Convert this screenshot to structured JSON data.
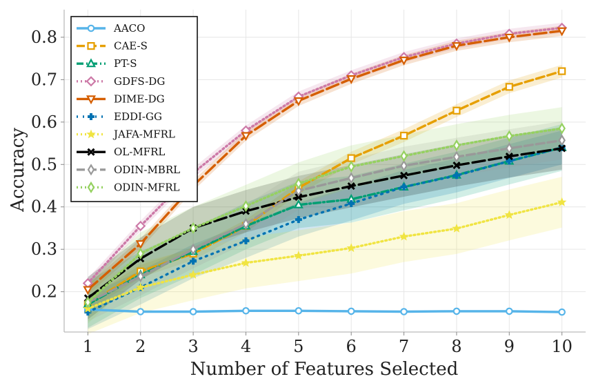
{
  "chart_data": {
    "type": "line",
    "title": "",
    "xlabel": "Number of Features Selected",
    "ylabel": "Accuracy",
    "x": [
      1,
      2,
      3,
      4,
      5,
      6,
      7,
      8,
      9,
      10
    ],
    "xlim": [
      0.55,
      10.45
    ],
    "ylim": [
      0.105,
      0.865
    ],
    "xticks": [
      "1",
      "2",
      "3",
      "4",
      "5",
      "6",
      "7",
      "8",
      "9",
      "10"
    ],
    "yticks": [
      0.2,
      0.3,
      0.4,
      0.5,
      0.6,
      0.7,
      0.8
    ],
    "ytick_labels": [
      "0.2",
      "0.3",
      "0.4",
      "0.5",
      "0.6",
      "0.7",
      "0.8"
    ],
    "grid": true,
    "legend_position": "top-left",
    "series": [
      {
        "name": "AACO",
        "color": "#56B4E9",
        "dash": "solid",
        "marker": "circle",
        "values": [
          0.158,
          0.153,
          0.153,
          0.155,
          0.155,
          0.154,
          0.153,
          0.154,
          0.154,
          0.152
        ],
        "band": 0.003
      },
      {
        "name": "CAE-S",
        "color": "#E69F00",
        "dash": "dashed",
        "marker": "square",
        "values": [
          0.17,
          0.248,
          0.29,
          0.355,
          0.445,
          0.515,
          0.568,
          0.627,
          0.683,
          0.72
        ],
        "band": 0.015
      },
      {
        "name": "PT-S",
        "color": "#009E73",
        "dash": "dashdot",
        "marker": "triangle-up",
        "values": [
          0.17,
          0.24,
          0.295,
          0.355,
          0.405,
          0.418,
          0.447,
          0.475,
          0.508,
          0.54
        ],
        "band": 0.055
      },
      {
        "name": "GDFS-DG",
        "color": "#CC79A7",
        "dash": "dotted",
        "marker": "diamond",
        "values": [
          0.22,
          0.355,
          0.48,
          0.58,
          0.66,
          0.71,
          0.753,
          0.785,
          0.808,
          0.822
        ],
        "band": 0.012
      },
      {
        "name": "DIME-DG",
        "color": "#D55E00",
        "dash": "longdash",
        "marker": "triangle-down",
        "values": [
          0.205,
          0.313,
          0.45,
          0.568,
          0.65,
          0.702,
          0.746,
          0.78,
          0.8,
          0.815
        ],
        "band": 0.012
      },
      {
        "name": "EDDI-GG",
        "color": "#0072B2",
        "dash": "densedot",
        "marker": "plus",
        "values": [
          0.152,
          0.21,
          0.272,
          0.32,
          0.37,
          0.408,
          0.447,
          0.474,
          0.508,
          0.54
        ],
        "band": 0.04
      },
      {
        "name": "JAFA-MFRL",
        "color": "#F0E442",
        "dash": "dotted",
        "marker": "star",
        "values": [
          0.16,
          0.21,
          0.24,
          0.268,
          0.285,
          0.303,
          0.33,
          0.349,
          0.381,
          0.411
        ],
        "band": 0.06
      },
      {
        "name": "OL-MFRL",
        "color": "#000000",
        "dash": "longdash",
        "marker": "x",
        "values": [
          0.185,
          0.278,
          0.35,
          0.39,
          0.423,
          0.449,
          0.474,
          0.498,
          0.519,
          0.538
        ],
        "band": 0.05
      },
      {
        "name": "ODIN-MBRL",
        "color": "#999999",
        "dash": "dashed",
        "marker": "thin-diamond",
        "values": [
          0.175,
          0.236,
          0.3,
          0.36,
          0.438,
          0.468,
          0.497,
          0.518,
          0.538,
          0.557
        ],
        "band": 0.045
      },
      {
        "name": "ODIN-MFRL",
        "color": "#95D160",
        "dash": "dotted",
        "marker": "thin-diamond",
        "values": [
          0.175,
          0.29,
          0.35,
          0.402,
          0.455,
          0.495,
          0.52,
          0.545,
          0.567,
          0.585
        ],
        "band": 0.05
      }
    ]
  }
}
